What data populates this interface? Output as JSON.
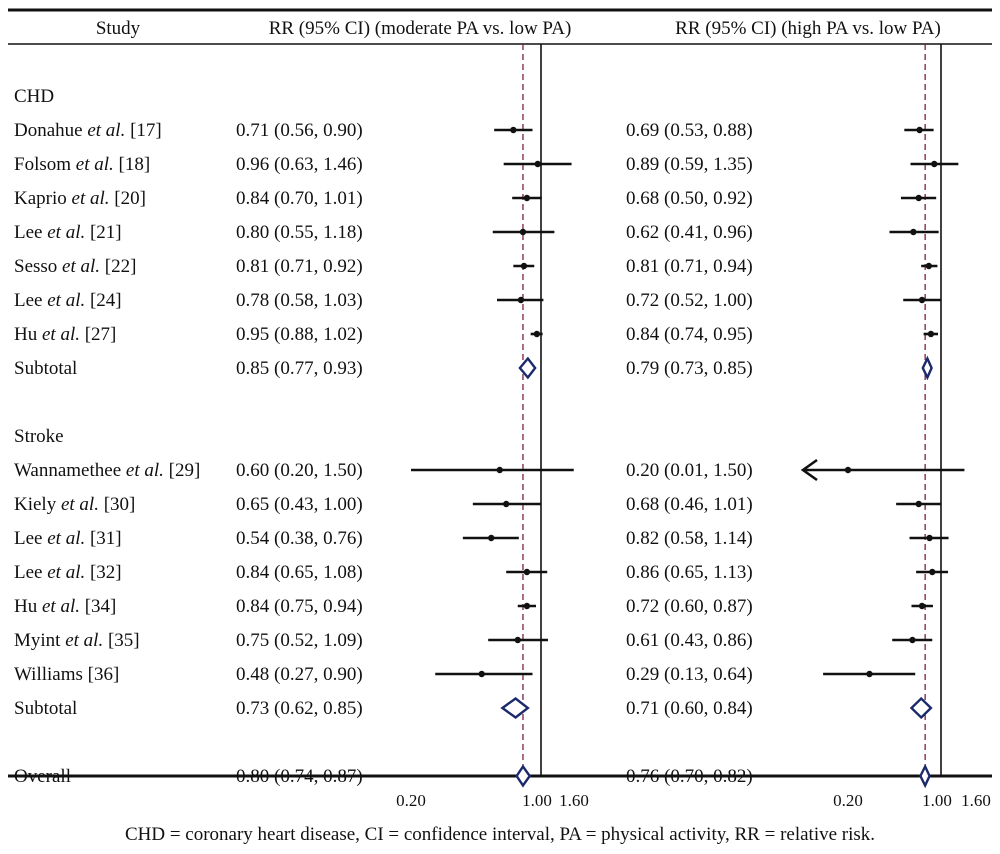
{
  "chart_data": {
    "type": "forest",
    "headers": {
      "study": "Study",
      "panel_moderate": "RR (95% CI) (moderate PA vs. low PA)",
      "panel_high": "RR (95% CI) (high PA vs. low PA)"
    },
    "x_scale": "log",
    "xlim": [
      0.2,
      1.6
    ],
    "xticks": [
      "0.20",
      "1.00",
      "1.60"
    ],
    "rows": [
      {
        "kind": "group",
        "label": "CHD"
      },
      {
        "kind": "study",
        "name": "Donahue",
        "italic": "et al.",
        "ref": "[17]",
        "moderate": {
          "rr": 0.71,
          "lo": 0.56,
          "hi": 0.9,
          "text": "0.71 (0.56, 0.90)"
        },
        "high": {
          "rr": 0.69,
          "lo": 0.53,
          "hi": 0.88,
          "text": "0.69 (0.53, 0.88)"
        }
      },
      {
        "kind": "study",
        "name": "Folsom",
        "italic": "et al.",
        "ref": "[18]",
        "moderate": {
          "rr": 0.96,
          "lo": 0.63,
          "hi": 1.46,
          "text": "0.96 (0.63, 1.46)"
        },
        "high": {
          "rr": 0.89,
          "lo": 0.59,
          "hi": 1.35,
          "text": "0.89 (0.59, 1.35)"
        }
      },
      {
        "kind": "study",
        "name": "Kaprio",
        "italic": "et al.",
        "ref": "[20]",
        "moderate": {
          "rr": 0.84,
          "lo": 0.7,
          "hi": 1.01,
          "text": "0.84 (0.70, 1.01)"
        },
        "high": {
          "rr": 0.68,
          "lo": 0.5,
          "hi": 0.92,
          "text": "0.68 (0.50, 0.92)"
        }
      },
      {
        "kind": "study",
        "name": "Lee",
        "italic": "et al.",
        "ref": "[21]",
        "moderate": {
          "rr": 0.8,
          "lo": 0.55,
          "hi": 1.18,
          "text": "0.80 (0.55, 1.18)"
        },
        "high": {
          "rr": 0.62,
          "lo": 0.41,
          "hi": 0.96,
          "text": "0.62 (0.41, 0.96)"
        }
      },
      {
        "kind": "study",
        "name": "Sesso",
        "italic": "et al.",
        "ref": "[22]",
        "moderate": {
          "rr": 0.81,
          "lo": 0.71,
          "hi": 0.92,
          "text": "0.81 (0.71, 0.92)"
        },
        "high": {
          "rr": 0.81,
          "lo": 0.71,
          "hi": 0.94,
          "text": "0.81 (0.71, 0.94)"
        }
      },
      {
        "kind": "study",
        "name": "Lee",
        "italic": "et al.",
        "ref": "[24]",
        "moderate": {
          "rr": 0.78,
          "lo": 0.58,
          "hi": 1.03,
          "text": "0.78 (0.58, 1.03)"
        },
        "high": {
          "rr": 0.72,
          "lo": 0.52,
          "hi": 1.0,
          "text": "0.72 (0.52, 1.00)"
        }
      },
      {
        "kind": "study",
        "name": "Hu",
        "italic": "et al.",
        "ref": "[27]",
        "moderate": {
          "rr": 0.95,
          "lo": 0.88,
          "hi": 1.02,
          "text": "0.95 (0.88, 1.02)"
        },
        "high": {
          "rr": 0.84,
          "lo": 0.74,
          "hi": 0.95,
          "text": "0.84 (0.74, 0.95)"
        }
      },
      {
        "kind": "subtotal",
        "name": "Subtotal",
        "moderate": {
          "rr": 0.85,
          "lo": 0.77,
          "hi": 0.93,
          "text": "0.85 (0.77, 0.93)"
        },
        "high": {
          "rr": 0.79,
          "lo": 0.73,
          "hi": 0.85,
          "text": "0.79 (0.73, 0.85)"
        }
      },
      {
        "kind": "blank"
      },
      {
        "kind": "group",
        "label": "Stroke"
      },
      {
        "kind": "study",
        "name": "Wannamethee",
        "italic": "et al.",
        "ref": "[29]",
        "moderate": {
          "rr": 0.6,
          "lo": 0.2,
          "hi": 1.5,
          "text": "0.60 (0.20, 1.50)"
        },
        "high": {
          "rr": 0.2,
          "lo": 0.01,
          "hi": 1.5,
          "text": "0.20 (0.01, 1.50)"
        }
      },
      {
        "kind": "study",
        "name": "Kiely",
        "italic": "et al.",
        "ref": "[30]",
        "moderate": {
          "rr": 0.65,
          "lo": 0.43,
          "hi": 1.0,
          "text": "0.65 (0.43, 1.00)"
        },
        "high": {
          "rr": 0.68,
          "lo": 0.46,
          "hi": 1.01,
          "text": "0.68 (0.46, 1.01)"
        }
      },
      {
        "kind": "study",
        "name": "Lee",
        "italic": "et al.",
        "ref": "[31]",
        "moderate": {
          "rr": 0.54,
          "lo": 0.38,
          "hi": 0.76,
          "text": "0.54 (0.38, 0.76)"
        },
        "high": {
          "rr": 0.82,
          "lo": 0.58,
          "hi": 1.14,
          "text": "0.82 (0.58, 1.14)"
        }
      },
      {
        "kind": "study",
        "name": "Lee",
        "italic": "et al.",
        "ref": "[32]",
        "moderate": {
          "rr": 0.84,
          "lo": 0.65,
          "hi": 1.08,
          "text": "0.84 (0.65, 1.08)"
        },
        "high": {
          "rr": 0.86,
          "lo": 0.65,
          "hi": 1.13,
          "text": "0.86 (0.65, 1.13)"
        }
      },
      {
        "kind": "study",
        "name": "Hu",
        "italic": "et al.",
        "ref": "[34]",
        "moderate": {
          "rr": 0.84,
          "lo": 0.75,
          "hi": 0.94,
          "text": "0.84 (0.75, 0.94)"
        },
        "high": {
          "rr": 0.72,
          "lo": 0.6,
          "hi": 0.87,
          "text": "0.72 (0.60, 0.87)"
        }
      },
      {
        "kind": "study",
        "name": "Myint",
        "italic": "et al.",
        "ref": "[35]",
        "moderate": {
          "rr": 0.75,
          "lo": 0.52,
          "hi": 1.09,
          "text": "0.75 (0.52, 1.09)"
        },
        "high": {
          "rr": 0.61,
          "lo": 0.43,
          "hi": 0.86,
          "text": "0.61 (0.43, 0.86)"
        }
      },
      {
        "kind": "study",
        "name": "Williams",
        "italic": "",
        "ref": "[36]",
        "moderate": {
          "rr": 0.48,
          "lo": 0.27,
          "hi": 0.9,
          "text": "0.48 (0.27, 0.90)"
        },
        "high": {
          "rr": 0.29,
          "lo": 0.13,
          "hi": 0.64,
          "text": "0.29 (0.13, 0.64)"
        }
      },
      {
        "kind": "subtotal",
        "name": "Subtotal",
        "moderate": {
          "rr": 0.73,
          "lo": 0.62,
          "hi": 0.85,
          "text": "0.73 (0.62, 0.85)"
        },
        "high": {
          "rr": 0.71,
          "lo": 0.6,
          "hi": 0.84,
          "text": "0.71 (0.60, 0.84)"
        }
      },
      {
        "kind": "blank"
      },
      {
        "kind": "overall",
        "name": "Overall",
        "moderate": {
          "rr": 0.8,
          "lo": 0.74,
          "hi": 0.87,
          "text": "0.80 (0.74, 0.87)"
        },
        "high": {
          "rr": 0.76,
          "lo": 0.7,
          "hi": 0.82,
          "text": "0.76 (0.70, 0.82)"
        }
      }
    ],
    "colors": {
      "ink": "#111111",
      "diamond": "#1b2a6b",
      "refline": "#7a2040"
    },
    "footnote": "CHD = coronary heart disease, CI = confidence interval, PA = physical activity, RR = relative risk."
  }
}
